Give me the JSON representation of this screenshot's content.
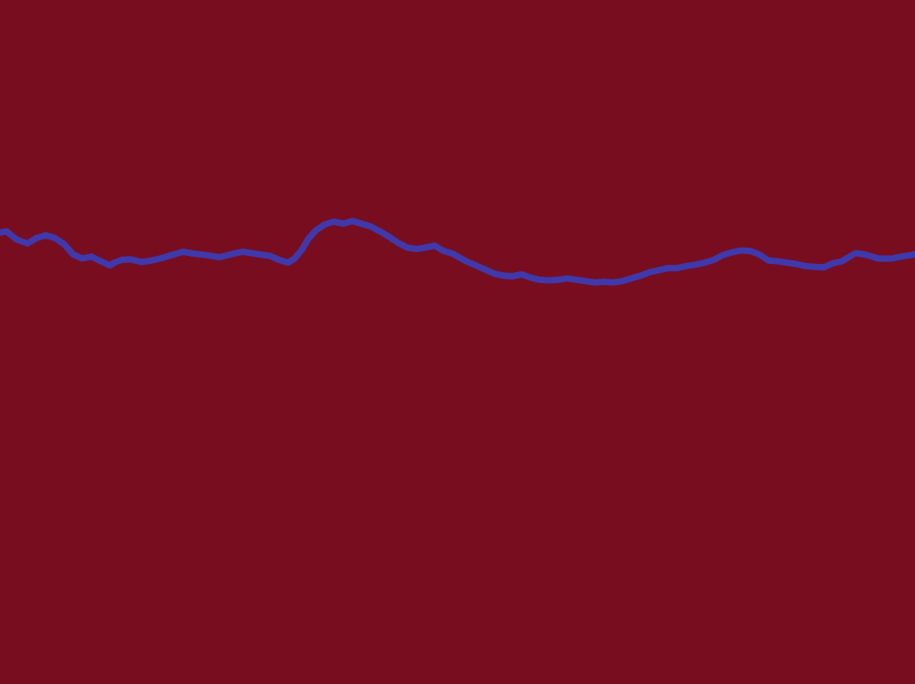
{
  "colors": {
    "background": "#780d20",
    "line": "#3f39ab"
  },
  "chart_data": {
    "type": "line",
    "title": "",
    "xlabel": "",
    "ylabel": "",
    "grid": false,
    "axes_visible": false,
    "legend": "none",
    "xlim": [
      0,
      1
    ],
    "ylim": [
      0,
      1
    ],
    "series": [
      {
        "x": [
          0.0,
          0.007,
          0.018,
          0.03,
          0.04,
          0.05,
          0.06,
          0.07,
          0.08,
          0.09,
          0.1,
          0.11,
          0.12,
          0.125,
          0.133,
          0.142,
          0.155,
          0.165,
          0.175,
          0.185,
          0.2,
          0.212,
          0.225,
          0.24,
          0.255,
          0.265,
          0.275,
          0.283,
          0.295,
          0.305,
          0.315,
          0.322,
          0.33,
          0.337,
          0.345,
          0.355,
          0.365,
          0.375,
          0.385,
          0.395,
          0.405,
          0.415,
          0.425,
          0.435,
          0.445,
          0.455,
          0.465,
          0.475,
          0.485,
          0.495,
          0.508,
          0.52,
          0.53,
          0.54,
          0.55,
          0.56,
          0.57,
          0.58,
          0.59,
          0.6,
          0.61,
          0.62,
          0.63,
          0.64,
          0.645,
          0.65,
          0.66,
          0.67,
          0.68,
          0.69,
          0.7,
          0.71,
          0.72,
          0.73,
          0.74,
          0.75,
          0.76,
          0.77,
          0.78,
          0.79,
          0.8,
          0.81,
          0.82,
          0.83,
          0.84,
          0.85,
          0.86,
          0.87,
          0.88,
          0.89,
          0.9,
          0.91,
          0.92,
          0.93,
          0.935,
          0.945,
          0.96,
          0.975,
          0.985,
          1.0
        ],
        "y": [
          0.66,
          0.662,
          0.65,
          0.644,
          0.652,
          0.656,
          0.652,
          0.643,
          0.628,
          0.622,
          0.625,
          0.618,
          0.612,
          0.616,
          0.62,
          0.621,
          0.617,
          0.619,
          0.622,
          0.626,
          0.632,
          0.629,
          0.627,
          0.624,
          0.629,
          0.632,
          0.63,
          0.628,
          0.626,
          0.62,
          0.616,
          0.622,
          0.635,
          0.651,
          0.663,
          0.672,
          0.676,
          0.673,
          0.677,
          0.673,
          0.669,
          0.662,
          0.654,
          0.645,
          0.638,
          0.636,
          0.638,
          0.641,
          0.633,
          0.629,
          0.619,
          0.612,
          0.606,
          0.6,
          0.597,
          0.596,
          0.599,
          0.594,
          0.591,
          0.59,
          0.591,
          0.593,
          0.591,
          0.589,
          0.588,
          0.587,
          0.588,
          0.587,
          0.589,
          0.593,
          0.597,
          0.602,
          0.605,
          0.608,
          0.608,
          0.611,
          0.613,
          0.616,
          0.62,
          0.627,
          0.631,
          0.634,
          0.633,
          0.628,
          0.619,
          0.618,
          0.616,
          0.614,
          0.611,
          0.61,
          0.609,
          0.615,
          0.618,
          0.626,
          0.63,
          0.628,
          0.622,
          0.622,
          0.625,
          0.628
        ]
      }
    ]
  }
}
